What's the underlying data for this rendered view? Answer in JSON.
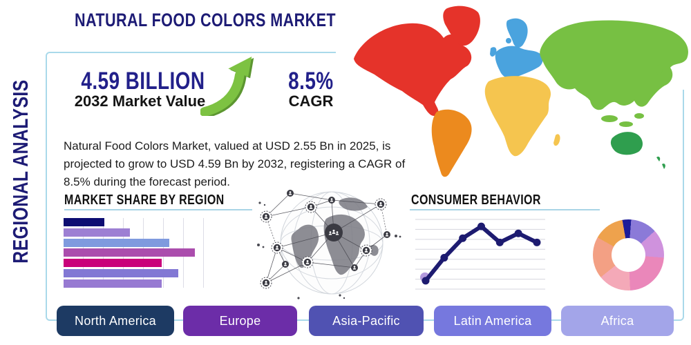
{
  "title": "NATURAL FOOD COLORS MARKET",
  "side_label": "REGIONAL ANALYSIS",
  "stats": {
    "market_value": "4.59 BILLION",
    "market_value_caption": "2032 Market Value",
    "cagr_value": "8.5%",
    "cagr_caption": "CAGR"
  },
  "description": "Natural Food Colors Market, valued at USD 2.55 Bn in 2025, is projected to grow to USD 4.59 Bn by 2032, registering a CAGR of 8.5% during the forecast period.",
  "region_buttons": [
    {
      "label": "North America",
      "color": "#1d3a63"
    },
    {
      "label": "Europe",
      "color": "#6c2da8"
    },
    {
      "label": "Asia-Pacific",
      "color": "#5052b2"
    },
    {
      "label": "Latin America",
      "color": "#7678de"
    },
    {
      "label": "Africa",
      "color": "#a3a5e9"
    }
  ],
  "colors": {
    "navy_text": "#1d1b75",
    "box_border": "#a9d9ea",
    "heading_underline": "#a9d4e6",
    "growth_arrow_green": "#7dc242",
    "growth_arrow_shadow": "#5c9630"
  },
  "map_colors": {
    "north_america": "#e5332a",
    "south_america": "#ec8a1e",
    "europe": "#4aa3de",
    "africa": "#f5c54f",
    "asia": "#77c043",
    "australia": "#2f9e4e"
  },
  "chart_data": [
    {
      "type": "bar",
      "title": "MARKET SHARE BY REGION",
      "orientation": "horizontal",
      "values": [
        27,
        44,
        70,
        87,
        65,
        76,
        65
      ],
      "xlim": [
        0,
        100
      ],
      "grid": true,
      "bar_colors": [
        "#0d0d72",
        "#9d7fd3",
        "#7f9ade",
        "#ab4dad",
        "#c9017a",
        "#8278d4",
        "#977ad2"
      ]
    },
    {
      "type": "line",
      "title": "CONSUMER BEHAVIOR",
      "x": [
        1,
        2,
        3,
        4,
        5,
        6,
        7
      ],
      "values": [
        12,
        45,
        73,
        90,
        67,
        80,
        67
      ],
      "ylim": [
        0,
        100
      ],
      "grid": true,
      "line_color": "#1d1b70",
      "marker": "circle",
      "first_point_halo_color": "#b49add"
    },
    {
      "type": "pie",
      "donut": true,
      "start_angle_deg": -10,
      "slices": [
        {
          "value": 4,
          "color": "#1c1c99"
        },
        {
          "value": 12,
          "color": "#8b7ad8"
        },
        {
          "value": 13,
          "color": "#cf92dd"
        },
        {
          "value": 23,
          "color": "#ea87ba"
        },
        {
          "value": 15,
          "color": "#f4a9b8"
        },
        {
          "value": 19,
          "color": "#f3a084"
        },
        {
          "value": 14,
          "color": "#eea24d"
        }
      ]
    }
  ]
}
